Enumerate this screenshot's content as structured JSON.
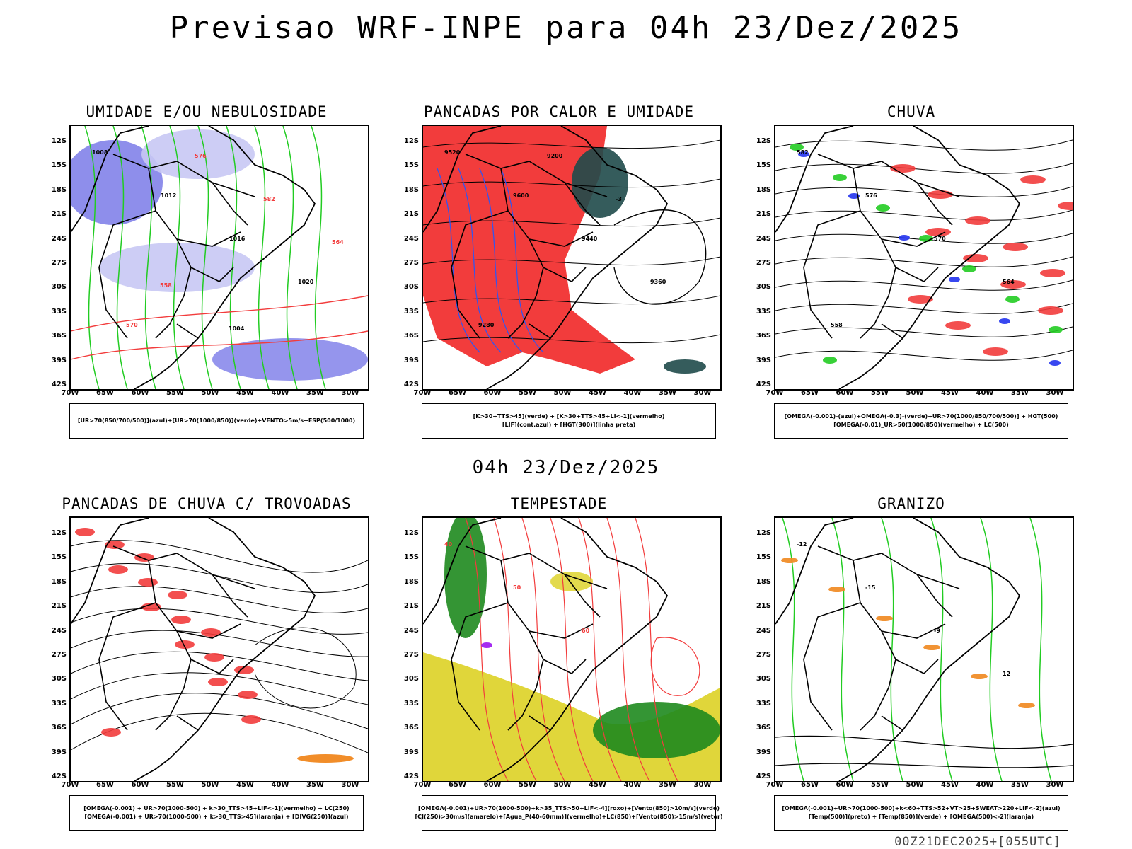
{
  "main_title": "Previsao WRF-INPE  para 04h 23/Dez/2025",
  "mid_label": "04h 23/Dez/2025",
  "footer_stamp": "00Z21DEC2025+[055UTC]",
  "lat_labels": [
    "12S",
    "15S",
    "18S",
    "21S",
    "24S",
    "27S",
    "30S",
    "33S",
    "36S",
    "39S",
    "42S"
  ],
  "lon_labels": [
    "70W",
    "65W",
    "60W",
    "55W",
    "50W",
    "45W",
    "40W",
    "35W",
    "30W"
  ],
  "colors": {
    "blue_shade": "#7a7ae8",
    "light_blue": "#c8c8f4",
    "green": "#22cc22",
    "red": "#f23c3c",
    "dark_teal": "#1f4a4a",
    "yellow": "#e0d63a",
    "orange": "#f0871e",
    "purple": "#a020f0"
  },
  "panels": [
    {
      "title": "UMIDADE E/OU NEBULOSIDADE",
      "legend": [
        "[UR>70(850/700/500)](azul)+[UR>70(1000/850)](verde)+VENTO>5m/s+ESP(500/1000)"
      ],
      "contour_labels": [
        "1008",
        "1012",
        "1016",
        "1020",
        "570",
        "576",
        "582",
        "564",
        "558",
        "1004"
      ]
    },
    {
      "title": "PANCADAS POR CALOR E UMIDADE",
      "legend": [
        "[K>30+TTS>45](verde) + [K>30+TTS>45+LI<-1](vermelho)",
        "[LIF](cont.azul) + [HGT(300)](linha preta)"
      ],
      "contour_labels": [
        "9520",
        "9600",
        "9440",
        "9360",
        "9280",
        "9200",
        "-3"
      ]
    },
    {
      "title": "CHUVA",
      "legend": [
        "[OMEGA(-0.001)-(azul)+OMEGA(-0.3)-(verde)+UR>70(1000/850/700/500)] + HGT(500)",
        "[OMEGA(-0.01)_UR>50(1000/850)(vermelho) + LC(500)"
      ],
      "contour_labels": [
        "582",
        "576",
        "570",
        "564",
        "558"
      ]
    },
    {
      "title": "PANCADAS DE CHUVA C/ TROVOADAS",
      "legend": [
        "[OMEGA(-0.001) + UR>70(1000-500) + k>30_TTS>45+LIF<-1](vermelho) + LC(250)",
        "[OMEGA(-0.001) + UR>70(1000-500) + k>30_TTS>45](laranja) + [DIVG(250)](azul)"
      ],
      "contour_labels": []
    },
    {
      "title": "TEMPESTADE",
      "legend": [
        "[OMEGA(-0.001)+UR>70(1000-500)+k>35_TTS>50+LIF<-4](roxo)+[Vento(850)>10m/s](verde)",
        "[CJ(250)>30m/s](amarelo)+[Agua_P(40-60mm)](vermelho)+LC(850)+[Vento(850)>15m/s](vetor)"
      ],
      "contour_labels": [
        "40",
        "50",
        "60"
      ]
    },
    {
      "title": "GRANIZO",
      "legend": [
        "[OMEGA(-0.001)+UR>70(1000-500)+k<60+TTS>52+VT>25+SWEAT>220+LIF<-2](azul)",
        "[Temp(500)](preto) + [Temp(850)](verde) + [OMEGA(500)<-2](laranja)"
      ],
      "contour_labels": [
        "-12",
        "-15",
        "-9",
        "12"
      ]
    }
  ]
}
